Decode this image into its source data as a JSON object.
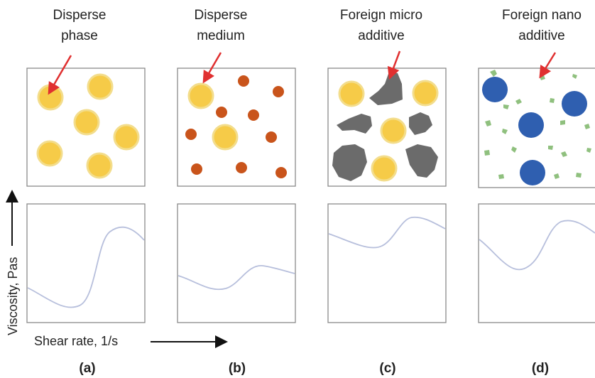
{
  "panels": [
    {
      "title_lines": [
        "Disperse",
        "phase"
      ],
      "caption": "(a)",
      "particles": [
        "yellow-droplets"
      ]
    },
    {
      "title_lines": [
        "Disperse",
        "medium"
      ],
      "caption": "(b)",
      "particles": [
        "yellow-droplets",
        "orange-particles"
      ]
    },
    {
      "title_lines": [
        "Foreign micro",
        "additive"
      ],
      "caption": "(c)",
      "particles": [
        "yellow-droplets",
        "gray-micro-additive"
      ]
    },
    {
      "title_lines": [
        "Foreign nano",
        "additive"
      ],
      "caption": "(d)",
      "particles": [
        "blue-droplets",
        "green-nano-additive"
      ]
    }
  ],
  "axes": {
    "y_label": "Viscosity, Pas",
    "x_label": "Shear rate, 1/s"
  },
  "colors": {
    "yellow": "#f6cb48",
    "yellow_edge": "#f3dd8c",
    "orange": "#c9541b",
    "gray": "#6b6b6b",
    "blue": "#2f5fb0",
    "green": "#8fc07e",
    "arrow": "#e03030",
    "curve": "#b7bfdc",
    "frame": "#8a8a8a"
  }
}
